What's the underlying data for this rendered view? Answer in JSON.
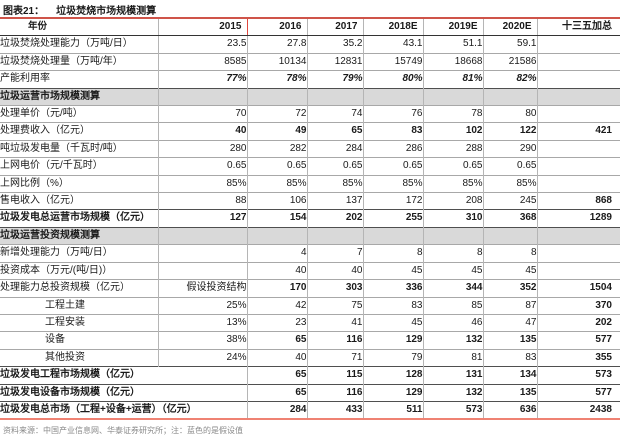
{
  "figure": {
    "tag": "图表21：",
    "title": "垃圾焚烧市场规模测算"
  },
  "table": {
    "headers": [
      "年份",
      "2015",
      "2016",
      "2017",
      "2018E",
      "2019E",
      "2020E",
      "十三五加总"
    ],
    "colors": {
      "assumption_blue": "#8aafdf",
      "utilization_blue": "#3a78c3",
      "highlight_red": "#e8473c",
      "section_bg": "#d9d9d9",
      "accent_top": "#cf5449",
      "accent_bottom": "#ef8273"
    },
    "rows": [
      {
        "label": "垃圾焚烧处理能力（万吨/日）",
        "cells": [
          "23.5",
          "27.8",
          "35.2",
          "43.1",
          "51.1",
          "59.1",
          ""
        ],
        "styles": [
          "red",
          "red",
          "red",
          "",
          "",
          "",
          ""
        ]
      },
      {
        "label": "垃圾焚烧处理量（万吨/年）",
        "cells": [
          "8585",
          "10134",
          "12831",
          "15749",
          "18668",
          "21586",
          ""
        ],
        "styles": [
          "",
          "",
          "",
          "",
          "",
          "",
          ""
        ]
      },
      {
        "label": "产能利用率",
        "cells": [
          "77%",
          "78%",
          "79%",
          "80%",
          "81%",
          "82%",
          ""
        ],
        "styles": [
          "blue",
          "blue",
          "blue",
          "blue",
          "blue",
          "blue",
          ""
        ]
      },
      {
        "section": "垃圾运营市场规模测算"
      },
      {
        "label": "处理单价（元/吨）",
        "cells": [
          "70",
          "72",
          "74",
          "76",
          "78",
          "80",
          ""
        ],
        "styles": [
          "lb",
          "lb",
          "lb",
          "lb",
          "lb",
          "lb",
          ""
        ]
      },
      {
        "label": "处理费收入（亿元）",
        "cells": [
          "40",
          "49",
          "65",
          "83",
          "102",
          "122",
          "421"
        ],
        "styles": [
          "b",
          "b",
          "b",
          "b",
          "b",
          "b",
          "b"
        ]
      },
      {
        "label": "吨垃圾发电量（千瓦时/吨）",
        "cells": [
          "280",
          "282",
          "284",
          "286",
          "288",
          "290",
          ""
        ],
        "styles": [
          "lb",
          "lb",
          "lb",
          "lb",
          "lb",
          "lb",
          ""
        ]
      },
      {
        "label": "上网电价（元/千瓦时）",
        "cells": [
          "0.65",
          "0.65",
          "0.65",
          "0.65",
          "0.65",
          "0.65",
          ""
        ],
        "styles": [
          "lb",
          "lb",
          "lb",
          "lb",
          "lb",
          "lb",
          ""
        ]
      },
      {
        "label": "上网比例（%）",
        "cells": [
          "85%",
          "85%",
          "85%",
          "85%",
          "85%",
          "85%",
          ""
        ],
        "styles": [
          "lb",
          "lb",
          "lb",
          "lb",
          "lb",
          "lb",
          ""
        ]
      },
      {
        "label": "售电收入（亿元）",
        "cells": [
          "88",
          "106",
          "137",
          "172",
          "208",
          "245",
          "868"
        ],
        "styles": [
          "",
          "",
          "",
          "",
          "",
          "",
          "b"
        ]
      },
      {
        "label": "垃圾发电总运营市场规模（亿元）",
        "bold": true,
        "dark": true,
        "cells": [
          "127",
          "154",
          "202",
          "255",
          "310",
          "368",
          "1289"
        ],
        "styles": [
          "b",
          "b",
          "b",
          "b",
          "b",
          "b",
          "b"
        ]
      },
      {
        "section": "垃圾运营投资规模测算"
      },
      {
        "label": "新增处理能力（万吨/日）",
        "cells": [
          "",
          "4",
          "7",
          "8",
          "8",
          "8",
          ""
        ],
        "styles": [
          "",
          "",
          "",
          "",
          "",
          "",
          ""
        ]
      },
      {
        "label": "投资成本（万元/(吨/日)）",
        "cells": [
          "",
          "40",
          "40",
          "45",
          "45",
          "45",
          ""
        ],
        "styles": [
          "",
          "lb",
          "lb",
          "lb",
          "lb",
          "lb",
          ""
        ]
      },
      {
        "label": "处理能力总投资规模（亿元）",
        "cells": [
          "假设投资结构",
          "170",
          "303",
          "336",
          "344",
          "352",
          "1504"
        ],
        "styles": [
          "txt",
          "b",
          "b",
          "b",
          "b",
          "b",
          "b"
        ]
      },
      {
        "label": "工程土建",
        "sub": true,
        "cells": [
          "25%",
          "42",
          "75",
          "83",
          "85",
          "87",
          "370"
        ],
        "styles": [
          "",
          "",
          "",
          "",
          "",
          "",
          "b"
        ]
      },
      {
        "label": "工程安装",
        "sub": true,
        "cells": [
          "13%",
          "23",
          "41",
          "45",
          "46",
          "47",
          "202"
        ],
        "styles": [
          "",
          "",
          "",
          "",
          "",
          "",
          "b"
        ]
      },
      {
        "label": "设备",
        "sub": true,
        "cells": [
          "38%",
          "65",
          "116",
          "129",
          "132",
          "135",
          "577"
        ],
        "styles": [
          "",
          "b",
          "b",
          "b",
          "b",
          "b",
          "b"
        ]
      },
      {
        "label": "其他投资",
        "sub": true,
        "cells": [
          "24%",
          "40",
          "71",
          "79",
          "81",
          "83",
          "355"
        ],
        "styles": [
          "",
          "",
          "",
          "",
          "",
          "",
          "b"
        ]
      },
      {
        "label": "垃圾发电工程市场规模（亿元）",
        "bold": true,
        "dark": true,
        "span2": true,
        "cells": [
          "65",
          "115",
          "128",
          "131",
          "134",
          "573"
        ],
        "styles": [
          "b",
          "b",
          "b",
          "b",
          "b",
          "b"
        ]
      },
      {
        "label": "垃圾发电设备市场规模（亿元）",
        "bold": true,
        "dark": true,
        "span2": true,
        "cells": [
          "65",
          "116",
          "129",
          "132",
          "135",
          "577"
        ],
        "styles": [
          "b",
          "b",
          "b",
          "b",
          "b",
          "b"
        ]
      },
      {
        "label": "垃圾发电总市场（工程+设备+运营）（亿元）",
        "bold": true,
        "dark": true,
        "span2": true,
        "cells": [
          "284",
          "433",
          "511",
          "573",
          "636",
          "2438"
        ],
        "styles": [
          "b",
          "b",
          "b",
          "b",
          "b",
          "b"
        ]
      }
    ]
  },
  "footer": {
    "source_note": "资料来源：中国产业信息网、华泰证券研究所；注：蓝色的是假设值"
  }
}
